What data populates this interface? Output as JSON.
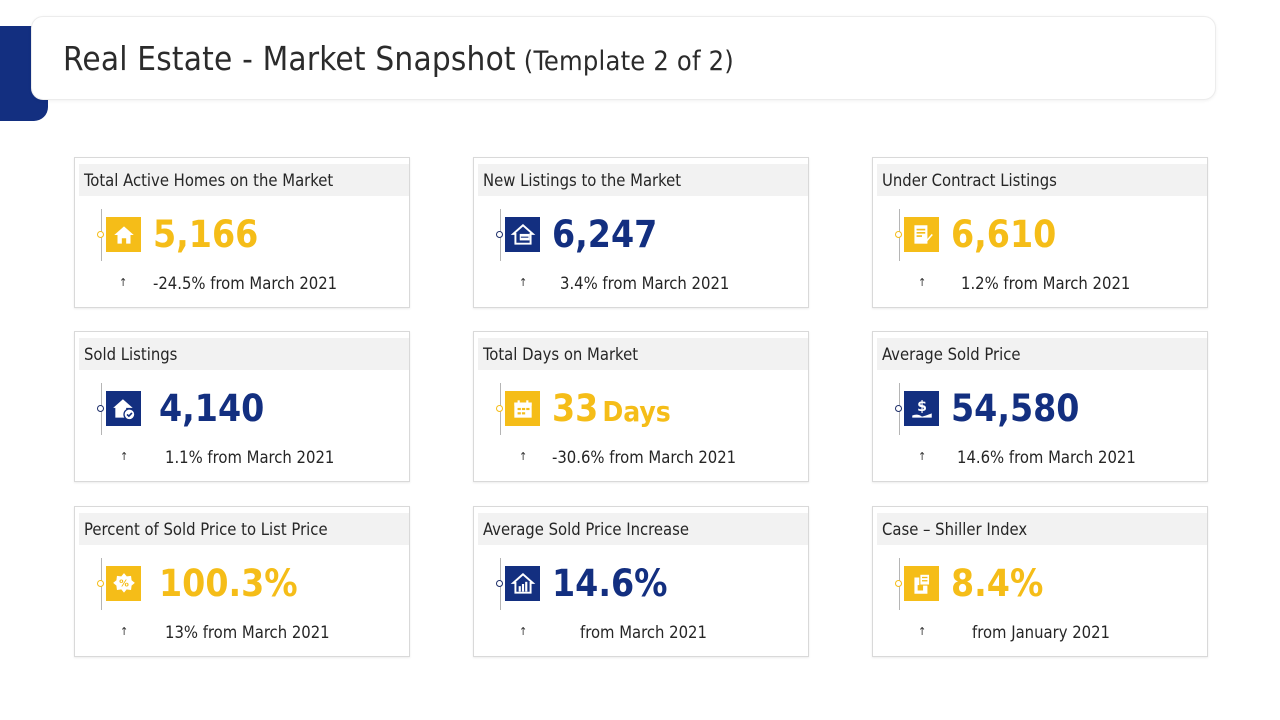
{
  "header": {
    "title": "Real Estate - Market Snapshot",
    "subtitle": "(Template 2 of 2)"
  },
  "colors": {
    "navy": "#132f80",
    "yellow": "#f5bd18"
  },
  "cards": [
    {
      "label": "Total Active Homes on the Market",
      "value": "5,166",
      "unit": "",
      "change": "-24.5% from March 2021",
      "arrow": "↑",
      "icon": "house-icon",
      "theme": "yellow"
    },
    {
      "label": "New Listings to the Market",
      "value": "6,247",
      "unit": "",
      "change": "3.4% from March 2021",
      "arrow": "↑",
      "icon": "house-signboard-icon",
      "theme": "navy"
    },
    {
      "label": "Under Contract Listings",
      "value": "6,610",
      "unit": "",
      "change": "1.2% from March 2021",
      "arrow": "↑",
      "icon": "contract-document-icon",
      "theme": "yellow"
    },
    {
      "label": "Sold Listings",
      "value": "4,140",
      "unit": "",
      "change": "1.1% from March 2021",
      "arrow": "↑",
      "icon": "house-check-icon",
      "theme": "navy"
    },
    {
      "label": "Total Days on Market",
      "value": "33",
      "unit": "Days",
      "change": "-30.6% from March 2021",
      "arrow": "↑",
      "icon": "calendar-icon",
      "theme": "yellow"
    },
    {
      "label": "Average Sold Price",
      "value": "54,580",
      "unit": "",
      "change": "14.6% from March 2021",
      "arrow": "↑",
      "icon": "dollar-hand-icon",
      "theme": "navy"
    },
    {
      "label": "Percent of Sold Price to List Price",
      "value": "100.3%",
      "unit": "",
      "change": "13% from March 2021",
      "arrow": "↑",
      "icon": "percent-badge-icon",
      "theme": "yellow"
    },
    {
      "label": "Average Sold Price Increase",
      "value": "14.6%",
      "unit": "",
      "change": "from March 2021",
      "arrow": "↑",
      "icon": "house-chart-icon",
      "theme": "navy"
    },
    {
      "label": "Case – Shiller Index",
      "value": "8.4%",
      "unit": "",
      "change": "from January 2021",
      "arrow": "↑",
      "icon": "index-document-icon",
      "theme": "yellow"
    }
  ]
}
